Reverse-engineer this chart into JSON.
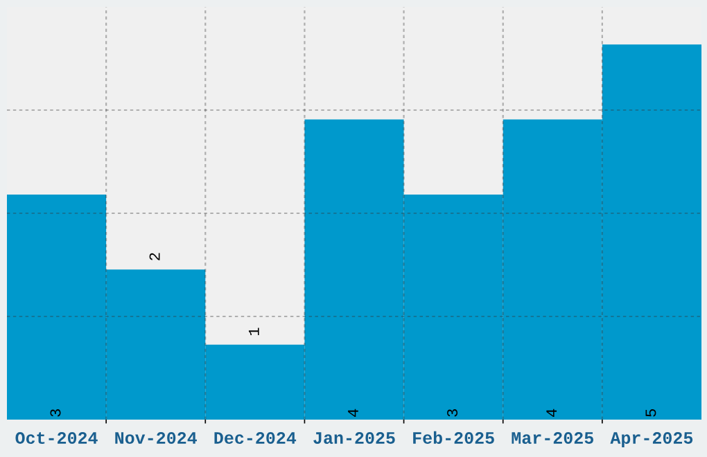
{
  "chart_data": {
    "type": "bar",
    "categories": [
      "Oct-2024",
      "Nov-2024",
      "Dec-2024",
      "Jan-2025",
      "Feb-2025",
      "Mar-2025",
      "Apr-2025"
    ],
    "values": [
      3,
      2,
      1,
      4,
      3,
      4,
      5
    ],
    "color": "#0099cc",
    "data_labels": true,
    "ylim": [
      0,
      5.5
    ],
    "yticks": [
      {
        "value": 1.375,
        "label": null
      },
      {
        "value": 2.75,
        "label": null
      },
      {
        "value": 4.125,
        "label": null
      }
    ],
    "tick_labels": "x",
    "grid": true
  }
}
